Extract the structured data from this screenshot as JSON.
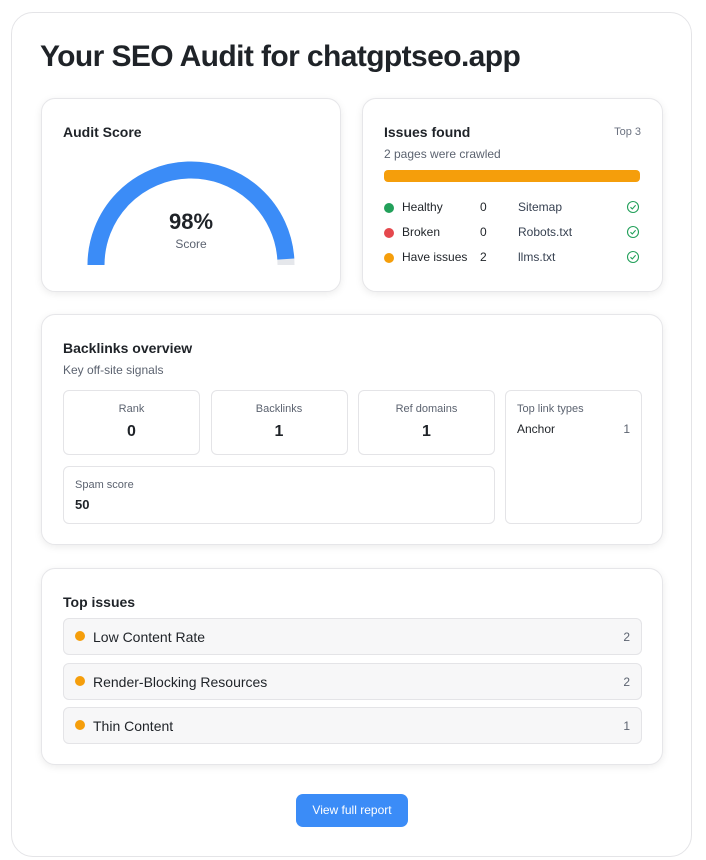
{
  "header": {
    "title": "Your SEO Audit for chatgptseo.app"
  },
  "audit_score": {
    "title": "Audit Score",
    "score": {
      "value": 98,
      "label": "98%"
    },
    "caption": "Score"
  },
  "issues_found": {
    "title": "Issues found",
    "badge": "Top 3",
    "subtitle": "2 pages were crawled",
    "statuses": [
      {
        "label": "Healthy",
        "count": 0
      },
      {
        "label": "Broken",
        "count": 0
      },
      {
        "label": "Have issues",
        "count": 2
      }
    ],
    "files": [
      "Sitemap",
      "Robots.txt",
      "llms.txt"
    ]
  },
  "backlinks": {
    "title": "Backlinks overview",
    "subtitle": "Key off-site signals",
    "metrics": [
      {
        "label": "Rank",
        "value": 0
      },
      {
        "label": "Backlinks",
        "value": 1
      },
      {
        "label": "Ref domains",
        "value": 1
      }
    ],
    "spam_score": {
      "label": "Spam score",
      "value": 50
    },
    "link_types": {
      "title": "Top link types",
      "items": [
        {
          "label": "Anchor",
          "count": 1
        }
      ]
    }
  },
  "top_issues": {
    "title": "Top issues",
    "items": [
      {
        "label": "Low Content Rate",
        "count": 2
      },
      {
        "label": "Render-Blocking Resources",
        "count": 2
      },
      {
        "label": "Thin Content",
        "count": 1
      }
    ]
  },
  "button": {
    "label": "View full report"
  }
}
